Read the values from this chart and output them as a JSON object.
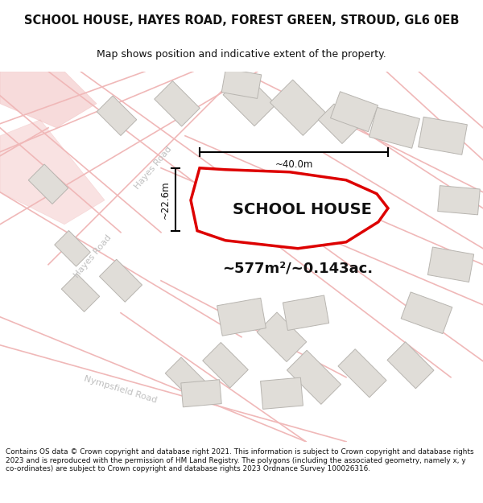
{
  "title": "SCHOOL HOUSE, HAYES ROAD, FOREST GREEN, STROUD, GL6 0EB",
  "subtitle": "Map shows position and indicative extent of the property.",
  "area_label": "~577m²/~0.143ac.",
  "property_label": "SCHOOL HOUSE",
  "dim_vertical": "~22.6m",
  "dim_horizontal": "~40.0m",
  "footer": "Contains OS data © Crown copyright and database right 2021. This information is subject to Crown copyright and database rights 2023 and is reproduced with the permission of HM Land Registry. The polygons (including the associated geometry, namely x, y co-ordinates) are subject to Crown copyright and database rights 2023 Ordnance Survey 100026316.",
  "map_bg": "#f8f7f5",
  "road_color": "#f0b8b8",
  "building_fill": "#e0ddd8",
  "building_edge": "#b8b5b0",
  "property_fill": "#ffffff",
  "property_edge": "#dd0000",
  "title_color": "#111111",
  "road_label_color": "#bbbbbb",
  "dim_color": "#111111"
}
